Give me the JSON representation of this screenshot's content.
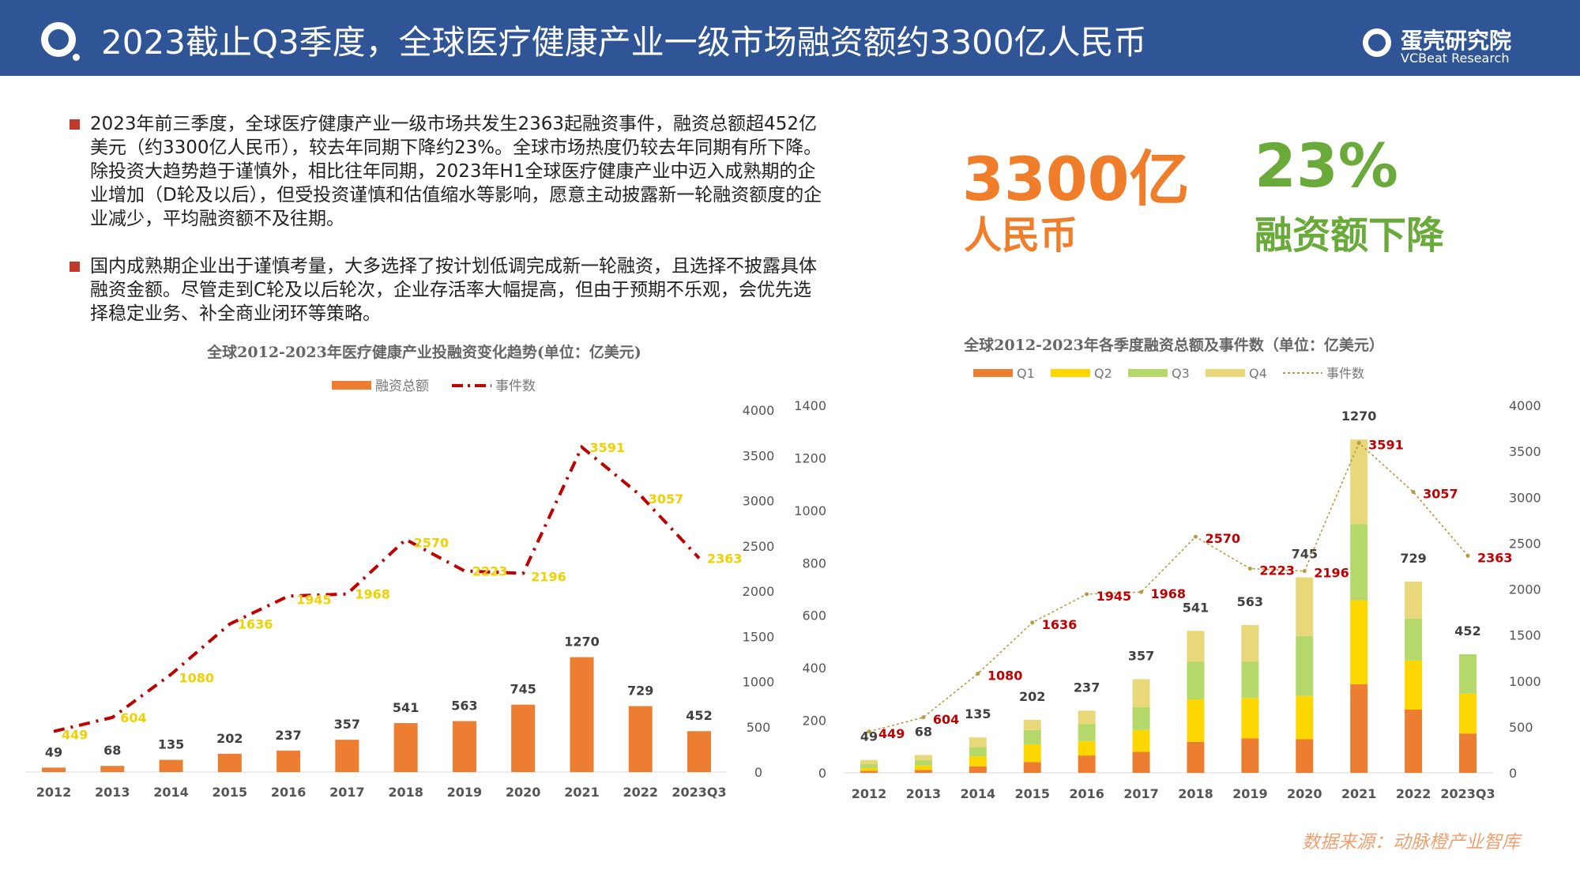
{
  "header": {
    "title": "2023截止Q3季度，全球医疗健康产业一级市场融资额约3300亿人民币",
    "brand_cn": "蛋壳研究院",
    "brand_en": "VCBeat Research"
  },
  "bullets": [
    "2023年前三季度，全球医疗健康产业一级市场共发生2363起融资事件，融资总额超452亿美元（约3300亿人民币），较去年同期下降约23%。全球市场热度仍较去年同期有所下降。除投资大趋势趋于谨慎外，相比往年同期，2023年H1全球医疗健康产业中迈入成熟期的企业增加（D轮及以后），但受投资谨慎和估值缩水等影响，愿意主动披露新一轮融资额度的企业减少，平均融资额不及往期。",
    "国内成熟期企业出于谨慎考量，大多选择了按计划低调完成新一轮融资，且选择不披露具体融资金额。尽管走到C轮及以后轮次，企业存活率大幅提高，但由于预期不乐观，会优先选择稳定业务、补全商业闭环等策略。"
  ],
  "highlights": {
    "amount_value": "3300亿",
    "amount_label": "人民币",
    "amount_color": "#f07d2a",
    "decline_value": "23%",
    "decline_label": "融资额下降",
    "decline_color": "#6aaa3a"
  },
  "source": "数据来源：动脉橙产业智库",
  "chart_data": [
    {
      "type": "bar+line",
      "title": "全球2012-2023年医疗健康产业投融资变化趋势(单位：亿美元)",
      "categories": [
        "2012",
        "2013",
        "2014",
        "2015",
        "2016",
        "2017",
        "2018",
        "2019",
        "2020",
        "2021",
        "2022",
        "2023Q3"
      ],
      "series": [
        {
          "name": "融资总额",
          "type": "bar",
          "color": "#ed7d31",
          "values": [
            49,
            68,
            135,
            202,
            237,
            357,
            541,
            563,
            745,
            1270,
            729,
            452
          ]
        },
        {
          "name": "事件数",
          "type": "line",
          "style": "dash-dot",
          "color": "#c00000",
          "label_color": "#f0d000",
          "values": [
            449,
            604,
            1080,
            1636,
            1945,
            1968,
            2570,
            2223,
            2196,
            3591,
            3057,
            2363
          ]
        }
      ],
      "y_right": {
        "range": [
          0,
          4000
        ],
        "ticks": [
          0,
          500,
          1000,
          1500,
          2000,
          2500,
          3000,
          3500,
          4000
        ]
      },
      "legend": "top"
    },
    {
      "type": "stacked-bar+line",
      "title": "全球2012-2023年各季度融资总额及事件数（单位：亿美元）",
      "categories": [
        "2012",
        "2013",
        "2014",
        "2015",
        "2016",
        "2017",
        "2018",
        "2019",
        "2020",
        "2021",
        "2022",
        "2023Q3"
      ],
      "totals": [
        49,
        68,
        135,
        202,
        237,
        357,
        541,
        563,
        745,
        1270,
        729,
        452
      ],
      "series": [
        {
          "name": "Q1",
          "color": "#ed7d31",
          "values": [
            8,
            11,
            25,
            41,
            66,
            80,
            118,
            131,
            128,
            338,
            241,
            150
          ]
        },
        {
          "name": "Q2",
          "color": "#ffd700",
          "values": [
            10,
            17,
            38,
            67,
            55,
            83,
            162,
            154,
            165,
            320,
            187,
            152
          ]
        },
        {
          "name": "Q3",
          "color": "#b5d86a",
          "values": [
            15,
            20,
            35,
            55,
            64,
            87,
            143,
            138,
            228,
            290,
            160,
            150
          ]
        },
        {
          "name": "Q4",
          "color": "#e8d87a",
          "values": [
            16,
            20,
            37,
            39,
            52,
            107,
            118,
            140,
            224,
            322,
            141,
            0
          ]
        },
        {
          "name": "事件数",
          "type": "line",
          "style": "dotted",
          "color": "#b89a40",
          "label_color": "#c00000",
          "values": [
            449,
            604,
            1080,
            1636,
            1945,
            1968,
            2570,
            2223,
            2196,
            3591,
            3057,
            2363
          ]
        }
      ],
      "y_left": {
        "range": [
          0,
          1400
        ],
        "ticks": [
          0,
          200,
          400,
          600,
          800,
          1000,
          1200,
          1400
        ]
      },
      "y_right": {
        "range": [
          0,
          4000
        ],
        "ticks": [
          0,
          500,
          1000,
          1500,
          2000,
          2500,
          3000,
          3500,
          4000
        ]
      },
      "legend": "top"
    }
  ]
}
